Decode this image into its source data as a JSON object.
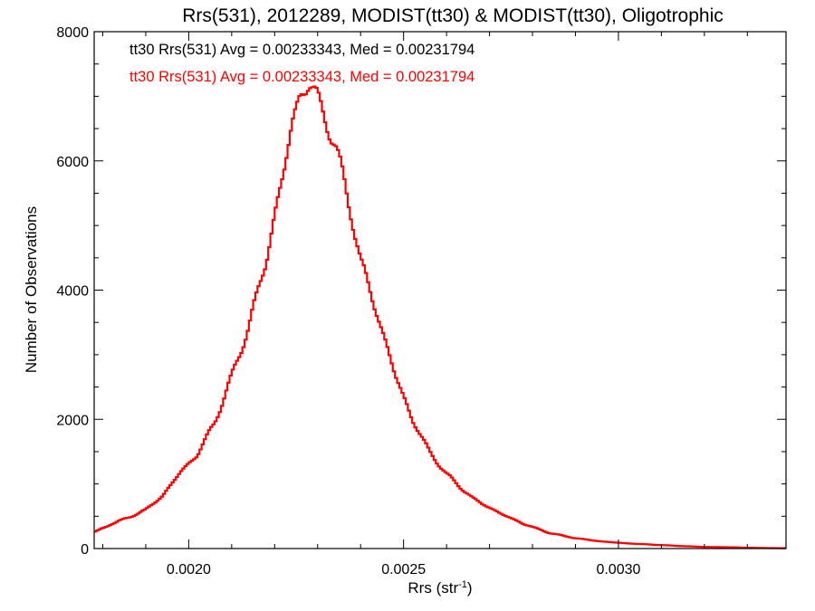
{
  "chart_data": {
    "type": "line",
    "title": "Rrs(531), 2012289, MODIST(tt30) & MODIST(tt30), Oligotrophic",
    "xlabel": "Rrs (str",
    "xlabel_sup": "-1",
    "xlabel_suffix": ")",
    "ylabel": "Number of Observations",
    "xlim": [
      0.00178,
      0.00339
    ],
    "ylim": [
      0,
      8000
    ],
    "x_ticks": [
      0.002,
      0.0025,
      0.003
    ],
    "x_tick_labels": [
      "0.0020",
      "0.0025",
      "0.0030"
    ],
    "y_ticks": [
      0,
      2000,
      4000,
      6000,
      8000
    ],
    "y_tick_labels": [
      "0",
      "2000",
      "4000",
      "6000",
      "8000"
    ],
    "grid": false,
    "annotations": [
      {
        "text": "tt30 Rrs(531) Avg = 0.00233343, Med = 0.00231794",
        "color": "#000000"
      },
      {
        "text": "tt30 Rrs(531) Avg = 0.00233343, Med = 0.00231794",
        "color": "#ff0000"
      }
    ],
    "series": [
      {
        "color": "#ff0000",
        "step": true,
        "x": [
          0.00178,
          0.00182,
          0.00186,
          0.0019,
          0.00194,
          0.00198,
          0.00202,
          0.00206,
          0.0021,
          0.00214,
          0.00218,
          0.0022,
          0.00222,
          0.00224,
          0.00226,
          0.00228,
          0.0023,
          0.00232,
          0.00234,
          0.00236,
          0.00238,
          0.0024,
          0.00244,
          0.00248,
          0.00252,
          0.00256,
          0.0026,
          0.00266,
          0.00272,
          0.00278,
          0.00284,
          0.0029,
          0.00296,
          0.00302,
          0.00308,
          0.00314,
          0.0032,
          0.00326,
          0.00332,
          0.00339
        ],
        "values": [
          250,
          380,
          480,
          600,
          820,
          1180,
          1450,
          1950,
          2650,
          3450,
          4450,
          5150,
          5800,
          6550,
          7050,
          7200,
          6950,
          6650,
          6250,
          5700,
          5150,
          4450,
          3600,
          2700,
          2000,
          1500,
          1150,
          780,
          560,
          380,
          240,
          160,
          110,
          80,
          60,
          40,
          25,
          20,
          10,
          5
        ]
      },
      {
        "color": "#000000",
        "step": true,
        "x": [
          0.00178,
          0.00182,
          0.00186,
          0.0019,
          0.00194,
          0.00198,
          0.00202,
          0.00206,
          0.0021,
          0.00214,
          0.00218,
          0.0022,
          0.00222,
          0.00224,
          0.00226,
          0.00228,
          0.0023,
          0.00232,
          0.00234,
          0.00236,
          0.00238,
          0.0024,
          0.00244,
          0.00248,
          0.00252,
          0.00256,
          0.0026,
          0.00266,
          0.00272,
          0.00278,
          0.00284,
          0.0029,
          0.00296,
          0.00302,
          0.00308,
          0.00314,
          0.0032,
          0.00326,
          0.00332,
          0.00339
        ],
        "values": [
          250,
          380,
          480,
          600,
          820,
          1180,
          1450,
          1950,
          2650,
          3450,
          4450,
          5150,
          5800,
          6550,
          7050,
          7200,
          6950,
          6650,
          6250,
          5700,
          5150,
          4450,
          3600,
          2700,
          2000,
          1500,
          1150,
          780,
          560,
          380,
          240,
          160,
          110,
          80,
          60,
          40,
          25,
          20,
          10,
          5
        ]
      }
    ]
  }
}
